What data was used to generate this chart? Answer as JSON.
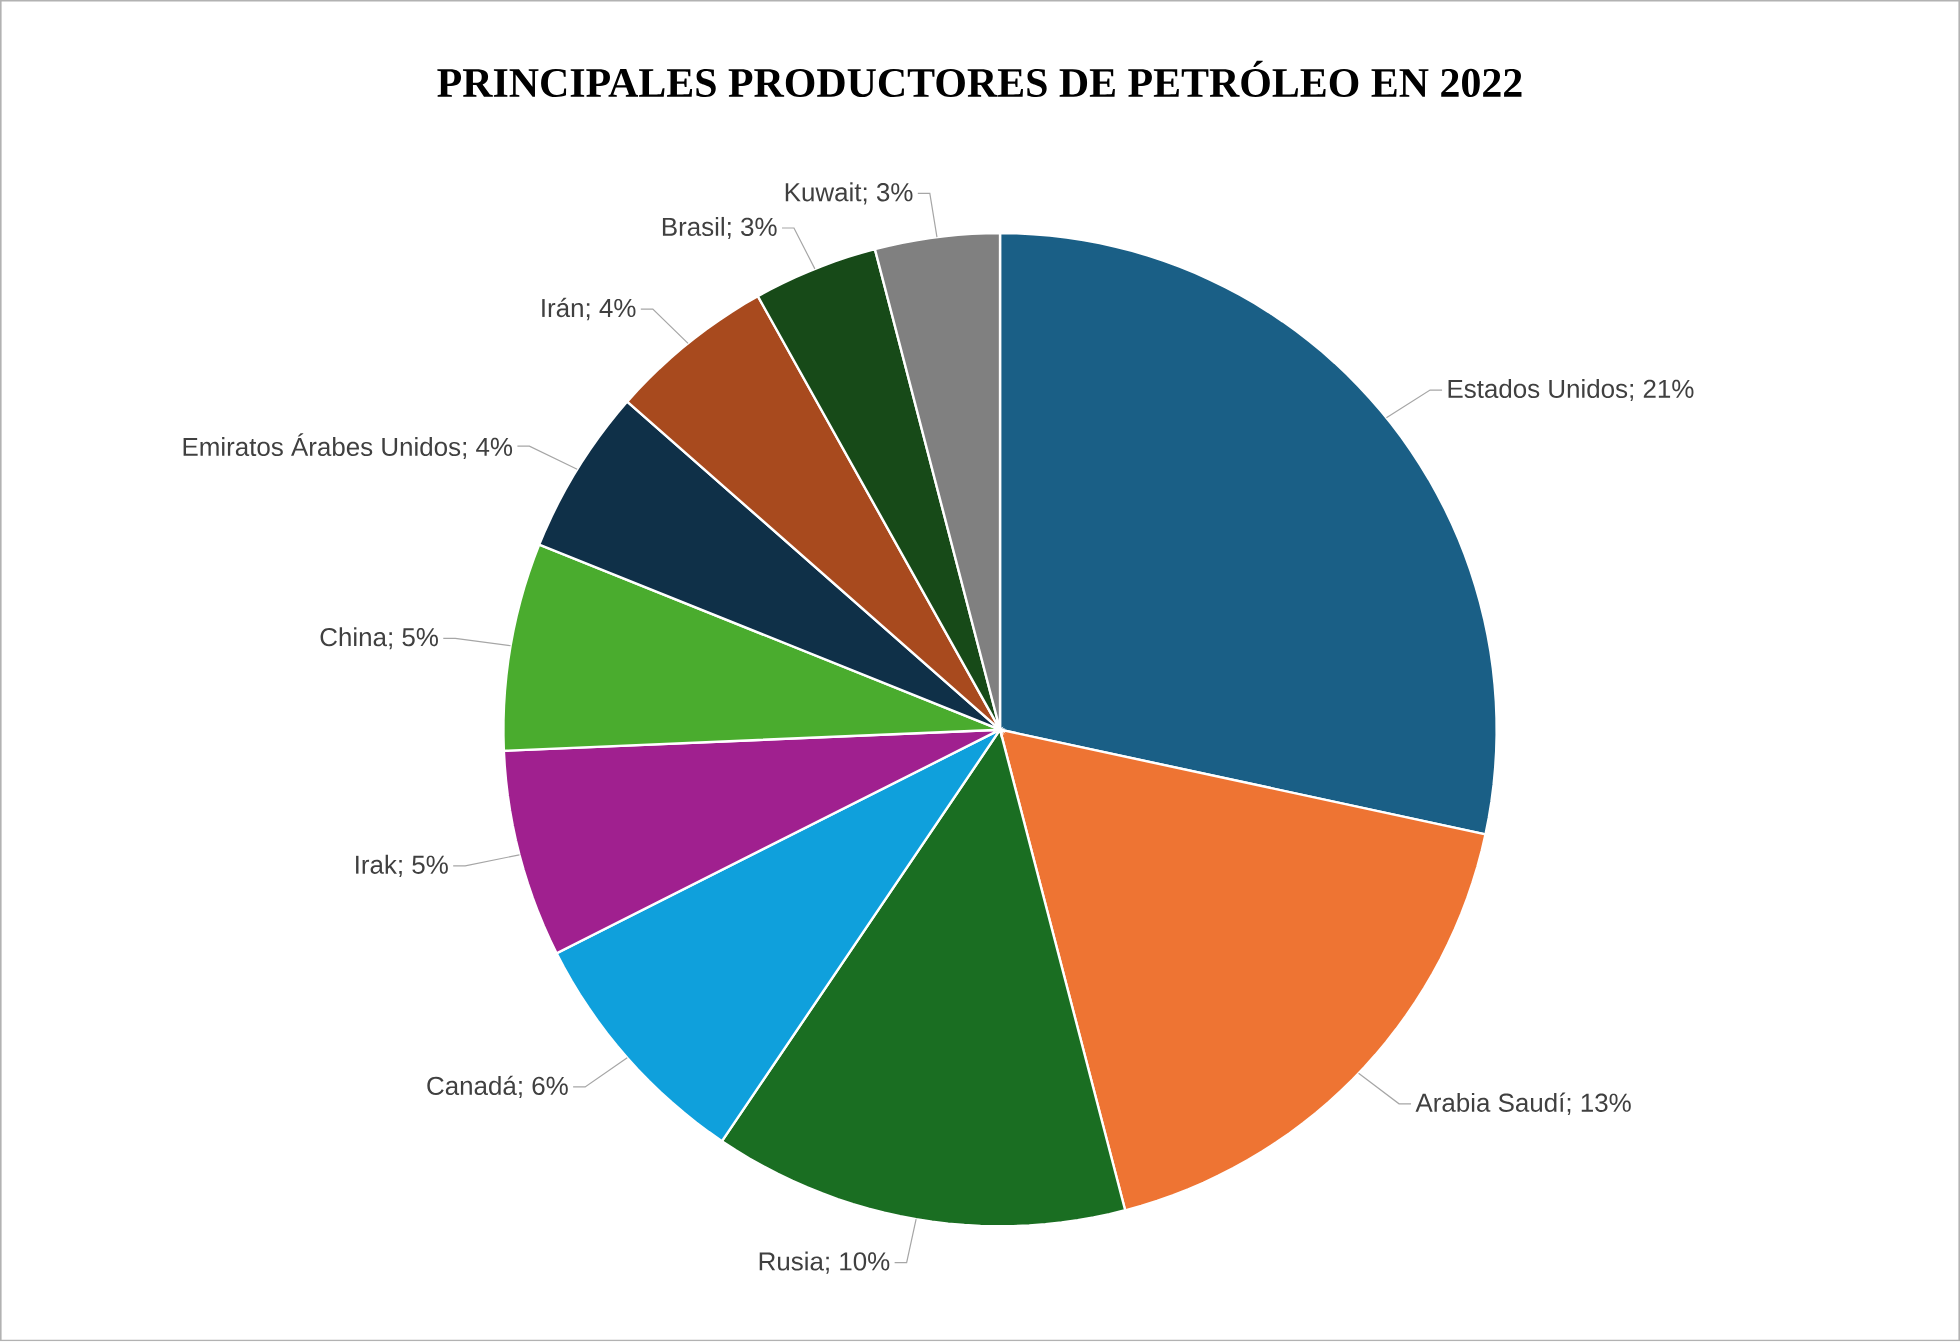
{
  "chart_data": {
    "type": "pie",
    "title": "PRINCIPALES PRODUCTORES DE PETRÓLEO EN 2022",
    "categories": [
      "Estados Unidos",
      "Arabia Saudí",
      "Rusia",
      "Canadá",
      "Irak",
      "China",
      "Emiratos Árabes Unidos",
      "Irán",
      "Brasil",
      "Kuwait"
    ],
    "values": [
      21,
      13,
      10,
      6,
      5,
      5,
      4,
      4,
      3,
      3
    ],
    "colors": [
      "#1a5f86",
      "#ee7433",
      "#1a6e22",
      "#0fa0dc",
      "#a0208f",
      "#4aac2e",
      "#0f3048",
      "#a84a1e",
      "#174a18",
      "#808080"
    ],
    "value_labels": [
      "; 21%",
      "; 13%",
      "; 10%",
      "; 6%",
      "; 5%",
      "; 5%",
      "; 4%",
      "; 4%",
      "; 3%",
      "; 3%"
    ]
  }
}
